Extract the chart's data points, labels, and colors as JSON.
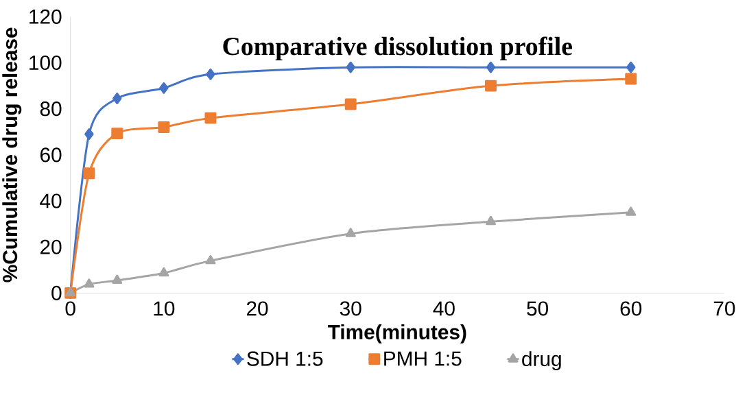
{
  "chart_data": {
    "type": "line",
    "title": "Comparative dissolution profile",
    "xlabel": "Time(minutes)",
    "ylabel": "%Cumulative drug release",
    "x": [
      0,
      2,
      5,
      10,
      15,
      30,
      45,
      60
    ],
    "series": [
      {
        "name": "SDH 1:5",
        "color": "#4472c4",
        "marker": "diamond",
        "values": [
          0,
          69,
          84.5,
          89,
          95,
          98,
          98,
          98
        ]
      },
      {
        "name": "PMH 1:5",
        "color": "#ed7d31",
        "marker": "square",
        "values": [
          0,
          52,
          69.3,
          72,
          76,
          82,
          90,
          93
        ]
      },
      {
        "name": "drug",
        "color": "#a5a5a5",
        "marker": "triangle",
        "values": [
          0,
          3.8,
          5.5,
          8.7,
          14,
          25.8,
          31,
          35
        ]
      }
    ],
    "xlim": [
      0,
      70
    ],
    "xticks": [
      0,
      10,
      20,
      30,
      40,
      50,
      60,
      70
    ],
    "ylim": [
      0,
      120
    ],
    "yticks": [
      0,
      20,
      40,
      60,
      80,
      100,
      120
    ],
    "grid": false,
    "legend": "bottom",
    "line_style": "solid"
  }
}
